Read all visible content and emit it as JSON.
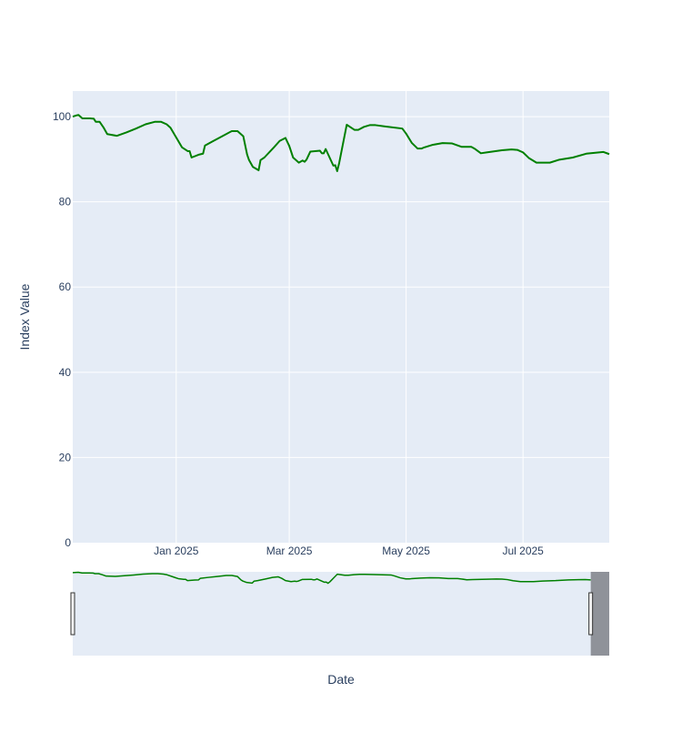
{
  "chart_data": {
    "type": "line",
    "title": "",
    "xlabel": "Date",
    "ylabel": "Index Value",
    "ylim": [
      0,
      106
    ],
    "xlim": [
      "2024-11-08",
      "2025-08-15"
    ],
    "grid": true,
    "legend": false,
    "y_ticks": [
      0,
      20,
      40,
      60,
      80,
      100
    ],
    "x_ticks": [
      {
        "date": "2025-01-01",
        "label": "Jan 2025"
      },
      {
        "date": "2025-03-01",
        "label": "Mar 2025"
      },
      {
        "date": "2025-05-01",
        "label": "May 2025"
      },
      {
        "date": "2025-07-01",
        "label": "Jul 2025"
      }
    ],
    "range_slider": {
      "visible": true,
      "selected_start": "2024-11-08",
      "selected_end": "2025-08-15",
      "full_start": "2024-11-08",
      "full_end": "2025-08-25"
    },
    "colors": {
      "line": "#008000",
      "plot_bg": "#e5ecf6",
      "grid": "#ffffff",
      "text": "#2a3f5f",
      "slider_mask": "#8a8d93"
    },
    "series": [
      {
        "x": [
          "2024-11-08",
          "2024-11-10",
          "2024-11-11",
          "2024-11-13",
          "2024-11-15",
          "2024-11-17",
          "2024-11-19",
          "2024-11-20",
          "2024-11-22",
          "2024-11-24",
          "2024-11-26",
          "2024-12-01",
          "2024-12-06",
          "2024-12-11",
          "2024-12-16",
          "2024-12-21",
          "2024-12-24",
          "2024-12-27",
          "2024-12-29",
          "2025-01-01",
          "2025-01-04",
          "2025-01-07",
          "2025-01-08",
          "2025-01-09",
          "2025-01-13",
          "2025-01-15",
          "2025-01-16",
          "2025-01-20",
          "2025-01-25",
          "2025-01-30",
          "2025-02-02",
          "2025-02-05",
          "2025-02-07",
          "2025-02-08",
          "2025-02-10",
          "2025-02-13",
          "2025-02-14",
          "2025-02-16",
          "2025-02-21",
          "2025-02-24",
          "2025-02-27",
          "2025-03-01",
          "2025-03-03",
          "2025-03-05",
          "2025-03-06",
          "2025-03-08",
          "2025-03-09",
          "2025-03-10",
          "2025-03-12",
          "2025-03-17",
          "2025-03-18",
          "2025-03-19",
          "2025-03-20",
          "2025-03-24",
          "2025-03-25",
          "2025-03-26",
          "2025-03-27",
          "2025-03-31",
          "2025-04-04",
          "2025-04-06",
          "2025-04-09",
          "2025-04-12",
          "2025-04-15",
          "2025-04-20",
          "2025-04-29",
          "2025-05-01",
          "2025-05-04",
          "2025-05-07",
          "2025-05-09",
          "2025-05-10",
          "2025-05-15",
          "2025-05-20",
          "2025-05-25",
          "2025-05-30",
          "2025-06-04",
          "2025-06-06",
          "2025-06-09",
          "2025-06-12",
          "2025-06-20",
          "2025-06-25",
          "2025-06-28",
          "2025-07-01",
          "2025-07-04",
          "2025-07-08",
          "2025-07-15",
          "2025-07-20",
          "2025-07-27",
          "2025-08-03",
          "2025-08-12",
          "2025-08-15"
        ],
        "y": [
          100.0,
          100.3,
          100.4,
          99.6,
          99.6,
          99.6,
          99.5,
          98.8,
          98.8,
          97.5,
          95.9,
          95.5,
          96.3,
          97.2,
          98.2,
          98.8,
          98.8,
          98.2,
          97.4,
          95.1,
          92.8,
          91.9,
          91.9,
          90.4,
          91.1,
          91.3,
          93.2,
          94.2,
          95.4,
          96.6,
          96.6,
          95.4,
          91.1,
          89.8,
          88.2,
          87.4,
          89.8,
          90.4,
          92.8,
          94.3,
          95.0,
          93.1,
          90.4,
          89.6,
          89.2,
          89.7,
          89.4,
          89.9,
          91.8,
          92.0,
          91.4,
          91.4,
          92.4,
          88.5,
          88.6,
          87.2,
          89.0,
          98.1,
          96.9,
          96.9,
          97.6,
          98.0,
          98.0,
          97.7,
          97.2,
          96.0,
          93.8,
          92.5,
          92.5,
          92.7,
          93.4,
          93.8,
          93.7,
          92.9,
          92.9,
          92.4,
          91.4,
          91.6,
          92.1,
          92.3,
          92.2,
          91.6,
          90.3,
          89.2,
          89.2,
          89.9,
          90.4,
          91.3,
          91.7,
          91.2
        ]
      }
    ]
  }
}
